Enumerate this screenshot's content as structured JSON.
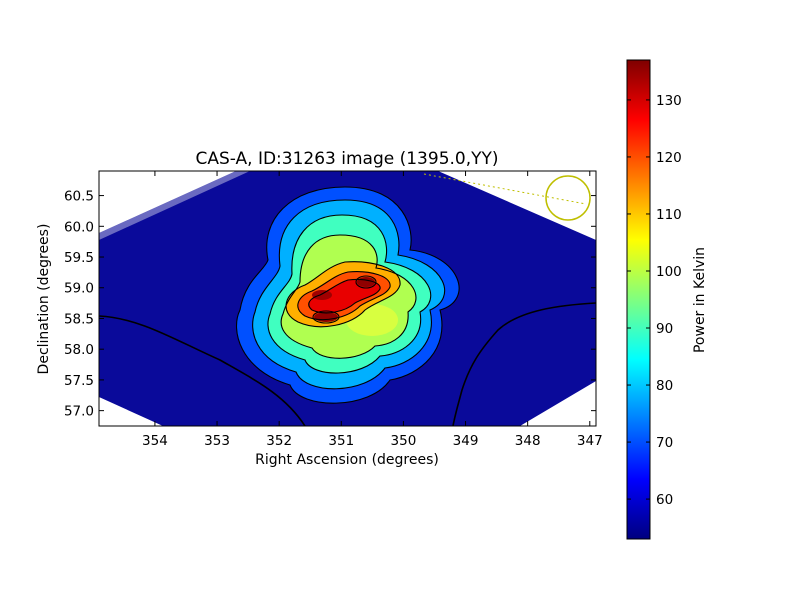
{
  "chart_data": {
    "type": "heatmap",
    "title": "CAS-A, ID:31263 image (1395.0,YY)",
    "xlabel": "Right Ascension (degrees)",
    "ylabel": "Declination (degrees)",
    "xlim": [
      354.9,
      346.9
    ],
    "ylim": [
      56.75,
      60.9
    ],
    "x_ticks": [
      354,
      353,
      352,
      351,
      350,
      349,
      348,
      347
    ],
    "y_ticks": [
      57.0,
      57.5,
      58.0,
      58.5,
      59.0,
      59.5,
      60.0,
      60.5
    ],
    "x_tick_labels": [
      "354",
      "353",
      "352",
      "351",
      "350",
      "349",
      "348",
      "347"
    ],
    "y_tick_labels": [
      "57.0",
      "57.5",
      "58.0",
      "58.5",
      "59.0",
      "59.5",
      "60.0",
      "60.5"
    ],
    "colorbar": {
      "label": "Power in Kelvin",
      "min": 53,
      "max": 137,
      "ticks": [
        60,
        70,
        80,
        90,
        100,
        110,
        120,
        130
      ],
      "tick_labels": [
        "60",
        "70",
        "80",
        "90",
        "100",
        "110",
        "120",
        "130"
      ],
      "colormap": "jet"
    },
    "peaks": [
      {
        "ra": 351.25,
        "dec": 58.8,
        "kelvin": 133
      },
      {
        "ra": 351.4,
        "dec": 58.5,
        "kelvin": 136
      },
      {
        "ra": 350.7,
        "dec": 59.15,
        "kelvin": 137
      }
    ],
    "beam_circle": {
      "ra": 347.4,
      "dec": 60.45
    },
    "contours": true,
    "grid": false
  },
  "colors": {
    "background_low": "#00007f",
    "beam_outline": "#bfbf00",
    "contour": "#000000"
  }
}
